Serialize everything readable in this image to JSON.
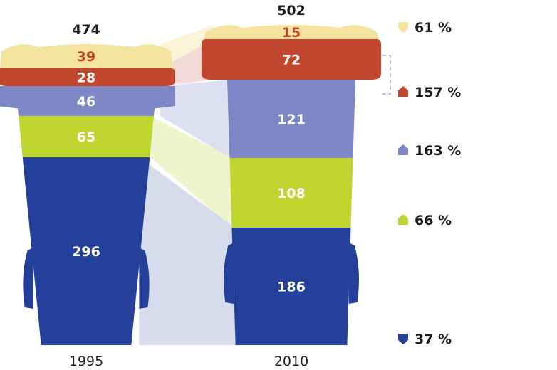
{
  "chart_data": {
    "type": "bar",
    "stacked": true,
    "categories": [
      "1995",
      "2010"
    ],
    "totals": [
      474,
      502
    ],
    "segment_order_top_to_bottom": [
      "yellow",
      "red",
      "purple",
      "green",
      "blue"
    ],
    "series": [
      {
        "key": "yellow",
        "values": [
          39,
          15
        ],
        "color": "#f4e39f",
        "change": "61 %",
        "direction": "down",
        "value_color": "#c0472e"
      },
      {
        "key": "red",
        "values": [
          28,
          72
        ],
        "color": "#c0472e",
        "change": "157 %",
        "direction": "up",
        "value_color": "#ffffff"
      },
      {
        "key": "purple",
        "values": [
          46,
          121
        ],
        "color": "#7d87c6",
        "change": "163 %",
        "direction": "up",
        "value_color": "#ffffff"
      },
      {
        "key": "green",
        "values": [
          65,
          108
        ],
        "color": "#bfd630",
        "change": "66 %",
        "direction": "up",
        "value_color": "#ffffff"
      },
      {
        "key": "blue",
        "values": [
          296,
          186
        ],
        "color": "#25409a",
        "change": "37 %",
        "direction": "down",
        "value_color": "#ffffff"
      }
    ],
    "connector_colors": {
      "yellow": "#fbf4d8",
      "red": "#f4dad6",
      "purple": "#dde0f0",
      "green": "#eef5cd",
      "blue": "#d6dcec"
    },
    "bracket_color": "#aaaaaa",
    "total_color": "#1c1c1c",
    "year_color": "#222222"
  }
}
